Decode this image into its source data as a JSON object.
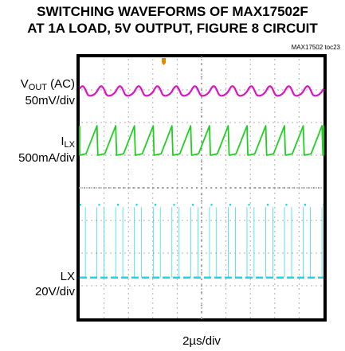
{
  "title_line1": "SWITCHING WAVEFORMS OF MAX17502F",
  "title_line2": "AT 1A LOAD, 5V OUTPUT, FIGURE 8 CIRCUIT",
  "figure_code": "MAX17502 toc23",
  "colors": {
    "frame": "#000000",
    "screen": "#ffffff",
    "grid": "#9a9a9a",
    "vout": "#e010c8",
    "ilx": "#20d020",
    "lx": "#18d8e8",
    "marker": "#e08a00"
  },
  "chart_data": {
    "type": "line",
    "time_per_div_us": 2,
    "divisions_x": 10,
    "divisions_y": 8,
    "switching_periods_on_screen": 13,
    "xlabel": "2µs/div",
    "series": [
      {
        "name_main": "V",
        "name_sub": "OUT",
        "name_suffix": " (AC)",
        "scale": "50mV/div",
        "color_key": "vout",
        "baseline_div": 1.05,
        "ripple_div": 0.35,
        "shape": "ripple"
      },
      {
        "name_main": "I",
        "name_sub": "LX",
        "name_suffix": "",
        "scale": "500mA/div",
        "color_key": "ilx",
        "baseline_div": 2.55,
        "ripple_div": 0.9,
        "shape": "triangle"
      },
      {
        "name_main": "LX",
        "name_sub": "",
        "name_suffix": "",
        "scale": "20V/div",
        "color_key": "lx",
        "baseline_div": 6.75,
        "ripple_div": 1.2,
        "shape": "square"
      }
    ]
  }
}
